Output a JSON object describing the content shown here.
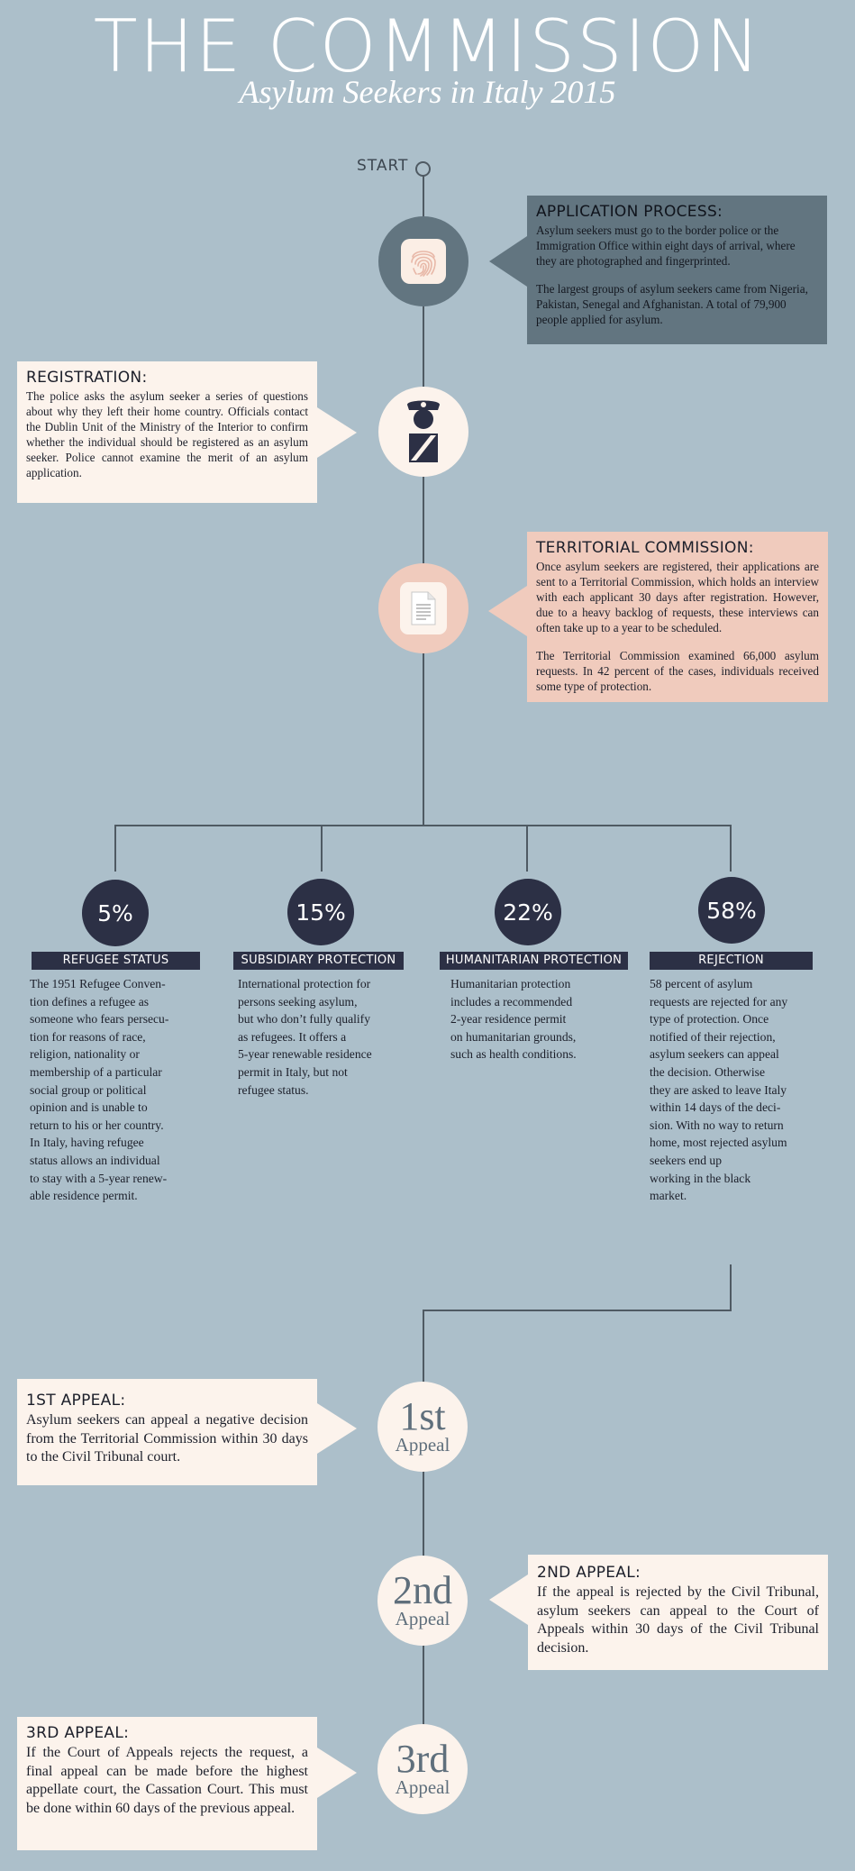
{
  "header": {
    "title": "THE COMMISSION",
    "subtitle": "Asylum Seekers in Italy 2015"
  },
  "start_label": "START",
  "application": {
    "heading": "APPLICATION PROCESS:",
    "p1": "Asylum seekers must go to the border police or the Immigration Office within eight days of arrival, where they are photographed and fingerprinted.",
    "p2": "The largest groups of asylum seekers came from Nigeria, Pakistan, Senegal and Afghanistan. A total of 79,900 people applied for asylum.",
    "icon": "fingerprint-icon"
  },
  "registration": {
    "heading": "REGISTRATION:",
    "p1": "The police asks the asylum seeker a series of questions about why they left their home country. Officials contact the Dublin Unit of the Ministry of the Interior to confirm whether the individual should be registered as an asylum seeker. Police cannot examine the merit of an asylum application.",
    "icon": "police-officer-icon"
  },
  "territorial": {
    "heading": "TERRITORIAL COMMISSION:",
    "p1": "Once asylum seekers are registered, their applications are sent to a Territorial Commission, which holds an interview with each applicant 30 days after registration. However, due to a heavy backlog of requests, these interviews can often take up to a year to be scheduled.",
    "p2": "The Territorial Commission examined 66,000 asylum requests. In 42 percent of the cases, individuals received some type of protection.",
    "icon": "document-icon"
  },
  "outcomes": [
    {
      "percent": "5%",
      "percent_value": 5,
      "label": "REFUGEE STATUS",
      "lines": [
        "The 1951 Refugee Conven-",
        "tion defines a refugee as",
        "someone who fears persecu-",
        "tion for reasons of race,",
        "religion, nationality or",
        "membership of a particular",
        "social group or political",
        "opinion and is unable to",
        "return to his or her country.",
        "In Italy, having refugee",
        "status allows an individual",
        "to stay with a 5-year renew-",
        "able residence permit."
      ]
    },
    {
      "percent": "15%",
      "percent_value": 15,
      "label": "SUBSIDIARY PROTECTION",
      "lines": [
        "International protection for",
        "persons seeking asylum,",
        "but who don’t fully qualify",
        "as refugees. It offers a",
        "5-year renewable residence",
        "permit in Italy, but not",
        "refugee status."
      ]
    },
    {
      "percent": "22%",
      "percent_value": 22,
      "label": "HUMANITARIAN PROTECTION",
      "lines": [
        "Humanitarian protection",
        "includes a recommended",
        "2-year residence permit",
        "on humanitarian grounds,",
        "such as health conditions."
      ]
    },
    {
      "percent": "58%",
      "percent_value": 58,
      "label": "REJECTION",
      "lines": [
        "58 percent of asylum",
        "requests are rejected for any",
        "type of protection. Once",
        "notified of their rejection,",
        "asylum seekers can appeal",
        "the decision. Otherwise",
        "they are asked to leave Italy",
        "within 14 days of the deci-",
        "sion. With no way to return",
        "home, most rejected asylum",
        "seekers end up",
        "working in the black",
        "market."
      ]
    }
  ],
  "appeals": [
    {
      "number": "1st",
      "word": "Appeal",
      "heading": "1ST APPEAL:",
      "text": "Asylum seekers can appeal a negative decision from the Territorial Commission within 30 days to the Civil Tribunal court."
    },
    {
      "number": "2nd",
      "word": "Appeal",
      "heading": "2ND APPEAL:",
      "text": "If the appeal is rejected by the Civil Tribunal, asylum seekers can appeal to the Court of Appeals within 30 days of the Civil Tribunal decision."
    },
    {
      "number": "3rd",
      "word": "Appeal",
      "heading": "3RD APPEAL:",
      "text": "If the Court of Appeals rejects the request, a final appeal can be made before the highest appellate court, the Cassation Court. This must be done within 60 days of the previous appeal."
    }
  ],
  "colors": {
    "background": "#acbfca",
    "dark_slate": "#627580",
    "cream": "#fcf3ec",
    "blush": "#f0cbbd",
    "navy": "#2c3045",
    "line": "#4f5a63"
  }
}
